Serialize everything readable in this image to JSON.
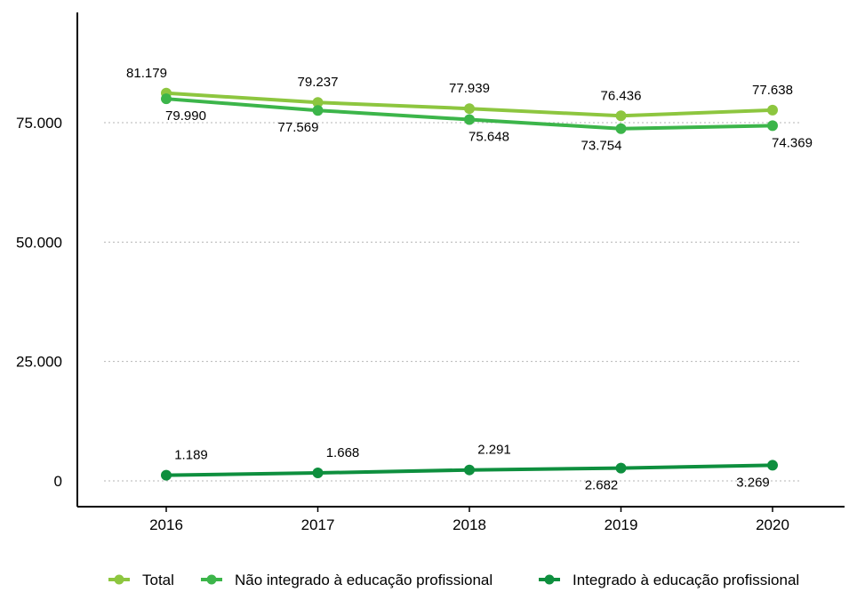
{
  "chart_data": {
    "type": "line",
    "title": "",
    "xlabel": "",
    "ylabel": "",
    "categories": [
      "2016",
      "2017",
      "2018",
      "2019",
      "2020"
    ],
    "ylim": [
      0,
      85000
    ],
    "y_ticks": [
      0,
      25000,
      50000,
      75000
    ],
    "y_tick_labels": [
      "0",
      "25.000",
      "50.000",
      "75.000"
    ],
    "grid": "horizontal dotted",
    "legend_position": "bottom",
    "series": [
      {
        "name": "Total",
        "color": "#8dc63f",
        "values": [
          81179,
          79237,
          77939,
          76436,
          77638
        ],
        "labels": [
          "81.179",
          "79.237",
          "77.939",
          "76.436",
          "77.638"
        ],
        "label_position": "above"
      },
      {
        "name": "Não integrado à educação profissional",
        "color": "#3cb54a",
        "values": [
          79990,
          77569,
          75648,
          73754,
          74369
        ],
        "labels": [
          "79.990",
          "77.569",
          "75.648",
          "73.754",
          "74.369"
        ],
        "label_position": "below"
      },
      {
        "name": "Integrado à educação profissional",
        "color": "#0e8f3e",
        "values": [
          1189,
          1668,
          2291,
          2682,
          3269
        ],
        "labels": [
          "1.189",
          "1.668",
          "2.291",
          "2.682",
          "3.269"
        ],
        "label_position": "mixed"
      }
    ]
  }
}
